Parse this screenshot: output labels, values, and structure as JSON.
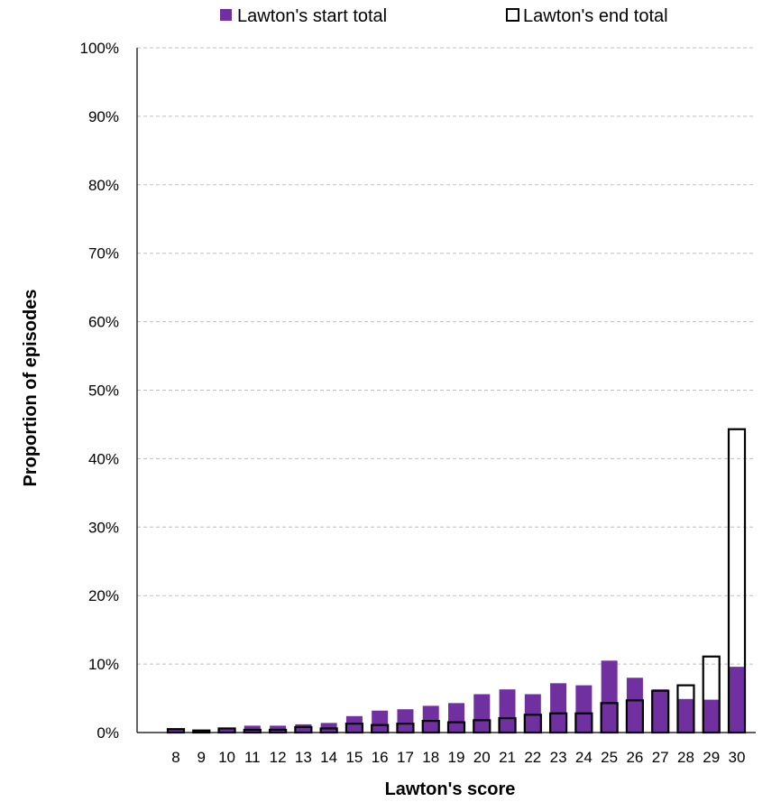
{
  "chart_data": {
    "type": "bar",
    "xlabel": "Lawton's score",
    "ylabel": "Proportion of episodes",
    "ylim": [
      0,
      100
    ],
    "y_unit": "%",
    "y_ticks": [
      "0%",
      "10%",
      "20%",
      "30%",
      "40%",
      "50%",
      "60%",
      "70%",
      "80%",
      "90%",
      "100%"
    ],
    "categories": [
      "8",
      "9",
      "10",
      "11",
      "12",
      "13",
      "14",
      "15",
      "16",
      "17",
      "18",
      "19",
      "20",
      "21",
      "22",
      "23",
      "24",
      "25",
      "26",
      "27",
      "28",
      "29",
      "30"
    ],
    "grid": true,
    "legend_position": "top",
    "series": [
      {
        "name": "Lawton's start total",
        "style": "filled",
        "color": "#7030a0",
        "values": [
          0.6,
          0.3,
          0.6,
          1.0,
          1.0,
          1.2,
          1.4,
          2.4,
          3.2,
          3.4,
          3.9,
          4.3,
          5.6,
          6.3,
          5.6,
          7.2,
          6.9,
          10.5,
          8.0,
          6.3,
          4.9,
          4.8,
          9.6
        ]
      },
      {
        "name": "Lawton's end total",
        "style": "outline",
        "color": "#000000",
        "values": [
          0.5,
          0.3,
          0.6,
          0.4,
          0.4,
          0.8,
          0.6,
          1.3,
          1.1,
          1.3,
          1.7,
          1.5,
          1.8,
          2.1,
          2.6,
          2.8,
          2.8,
          4.3,
          4.7,
          6.1,
          6.9,
          11.1,
          44.3
        ]
      }
    ]
  }
}
